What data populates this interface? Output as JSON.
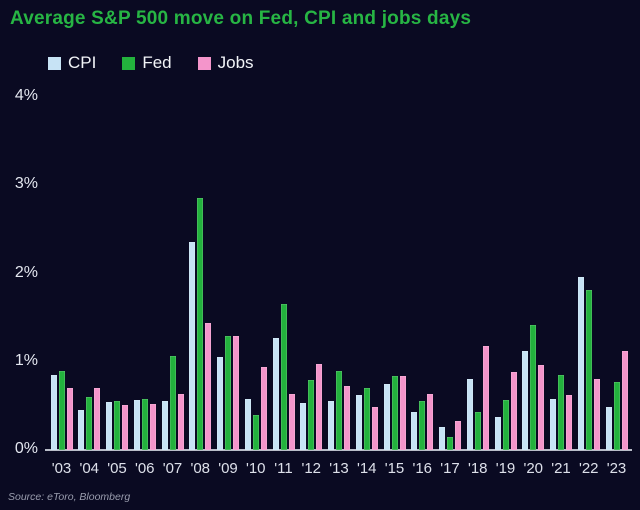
{
  "title": "Average S&P 500 move on Fed, CPI and jobs days",
  "source": "Source: eToro, Bloomberg",
  "colors": {
    "background": "#0a0a22",
    "title_green": "#27b544",
    "cpi": "#c7e3f5",
    "fed": "#23b23d",
    "jobs": "#f495cb",
    "axis_line": "#b9bdc9",
    "tick_text": "#e4e7f0"
  },
  "y_axis": {
    "ticks": [
      "4%",
      "3%",
      "2%",
      "1%",
      "0%"
    ]
  },
  "chart_data": {
    "type": "bar",
    "title": "Average S&P 500 move on Fed, CPI and jobs days",
    "xlabel": "",
    "ylabel": "",
    "ylim": [
      0,
      4
    ],
    "yticks_percent": [
      0,
      1,
      2,
      3,
      4
    ],
    "grid": false,
    "legend_position": "top-left",
    "categories": [
      "'03",
      "'04",
      "'05",
      "'06",
      "'07",
      "'08",
      "'09",
      "'10",
      "'11",
      "'12",
      "'13",
      "'14",
      "'15",
      "'16",
      "'17",
      "'18",
      "'19",
      "'20",
      "'21",
      "'22",
      "'23"
    ],
    "series": [
      {
        "name": "CPI",
        "color": "#c7e3f5",
        "values": [
          0.85,
          0.45,
          0.54,
          0.57,
          0.55,
          2.36,
          1.05,
          0.58,
          1.27,
          0.53,
          0.56,
          0.62,
          0.75,
          0.43,
          0.26,
          0.81,
          0.37,
          1.12,
          0.58,
          1.96,
          0.49
        ]
      },
      {
        "name": "Fed",
        "color": "#23b23d",
        "values": [
          0.9,
          0.6,
          0.55,
          0.58,
          1.07,
          2.86,
          1.29,
          0.4,
          1.65,
          0.79,
          0.89,
          0.7,
          0.84,
          0.56,
          0.15,
          0.43,
          0.57,
          1.42,
          0.85,
          1.81,
          0.77
        ]
      },
      {
        "name": "Jobs",
        "color": "#f495cb",
        "values": [
          0.7,
          0.7,
          0.51,
          0.52,
          0.64,
          1.44,
          1.29,
          0.94,
          0.63,
          0.97,
          0.73,
          0.49,
          0.84,
          0.63,
          0.33,
          1.18,
          0.88,
          0.96,
          0.62,
          0.81,
          1.12
        ]
      }
    ]
  }
}
